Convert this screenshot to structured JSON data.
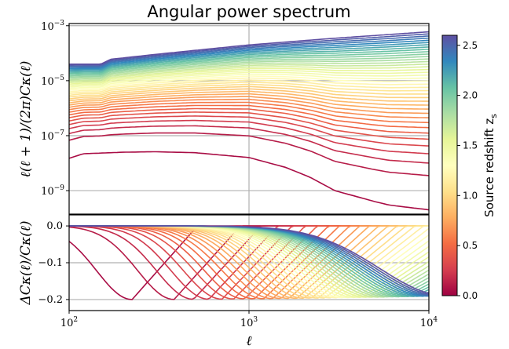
{
  "chart_data": [
    {
      "type": "line",
      "panel": "top",
      "title": "Angular power spectrum",
      "xlabel": "ℓ",
      "ylabel": "ℓ(ℓ + 1)/(2π)Cκ(ℓ)",
      "xscale": "log",
      "yscale": "log",
      "xlim": [
        100,
        10000
      ],
      "ylim": [
        1.4e-10,
        0.0012
      ],
      "x_ticks": [
        {
          "base": "10",
          "exp": "2"
        },
        {
          "base": "10",
          "exp": "3"
        },
        {
          "base": "10",
          "exp": "4"
        }
      ],
      "y_ticks": [
        {
          "base": "10",
          "exp": "−3",
          "value": 0.001
        },
        {
          "base": "10",
          "exp": "−5",
          "value": 1e-05
        },
        {
          "base": "10",
          "exp": "−7",
          "value": 1e-07
        },
        {
          "base": "10",
          "exp": "−9",
          "value": 1e-09
        }
      ],
      "grid": true,
      "series_count": 40,
      "colorscale": "Spectral",
      "z_range": [
        0.05,
        2.6
      ],
      "notes_visible": {
        "lowest_curve_z": 0.05,
        "lowest_curve_points": [
          [
            100,
            1.5e-08
          ],
          [
            120,
            2.2e-08
          ],
          [
            200,
            2.5e-08
          ],
          [
            300,
            2.6e-08
          ],
          [
            500,
            2.4e-08
          ],
          [
            1000,
            1.6e-08
          ],
          [
            1600,
            7e-09
          ],
          [
            2200,
            3e-09
          ],
          [
            3000,
            1e-09
          ],
          [
            5000,
            4e-10
          ],
          [
            6000,
            3e-10
          ],
          [
            10000,
            2e-10
          ]
        ],
        "highest_curve_points": [
          [
            100,
            4e-05
          ],
          [
            150,
            4e-05
          ],
          [
            170,
            6e-05
          ],
          [
            300,
            9e-05
          ],
          [
            1000,
            0.0002
          ],
          [
            3000,
            0.00035
          ],
          [
            10000,
            0.0006
          ]
        ]
      }
    },
    {
      "type": "line",
      "panel": "bottom",
      "xlabel": "ℓ",
      "ylabel": "ΔCκ(ℓ)/Cκ(ℓ)",
      "xscale": "log",
      "xlim": [
        100,
        10000
      ],
      "ylim": [
        -0.23,
        0.03
      ],
      "y_ticks": [
        "0.0",
        "−0.1",
        "−0.2"
      ],
      "y_tick_values": [
        0.0,
        -0.1,
        -0.2
      ],
      "grid": true,
      "series_count": 40,
      "colorscale": "Spectral"
    }
  ],
  "colorbar": {
    "label": "Source redshift z",
    "label_sub": "s",
    "range": [
      0,
      2.6
    ],
    "ticks": [
      "0.0",
      "0.5",
      "1.0",
      "1.5",
      "2.0",
      "2.5"
    ],
    "tick_values": [
      0.0,
      0.5,
      1.0,
      1.5,
      2.0,
      2.5
    ]
  }
}
